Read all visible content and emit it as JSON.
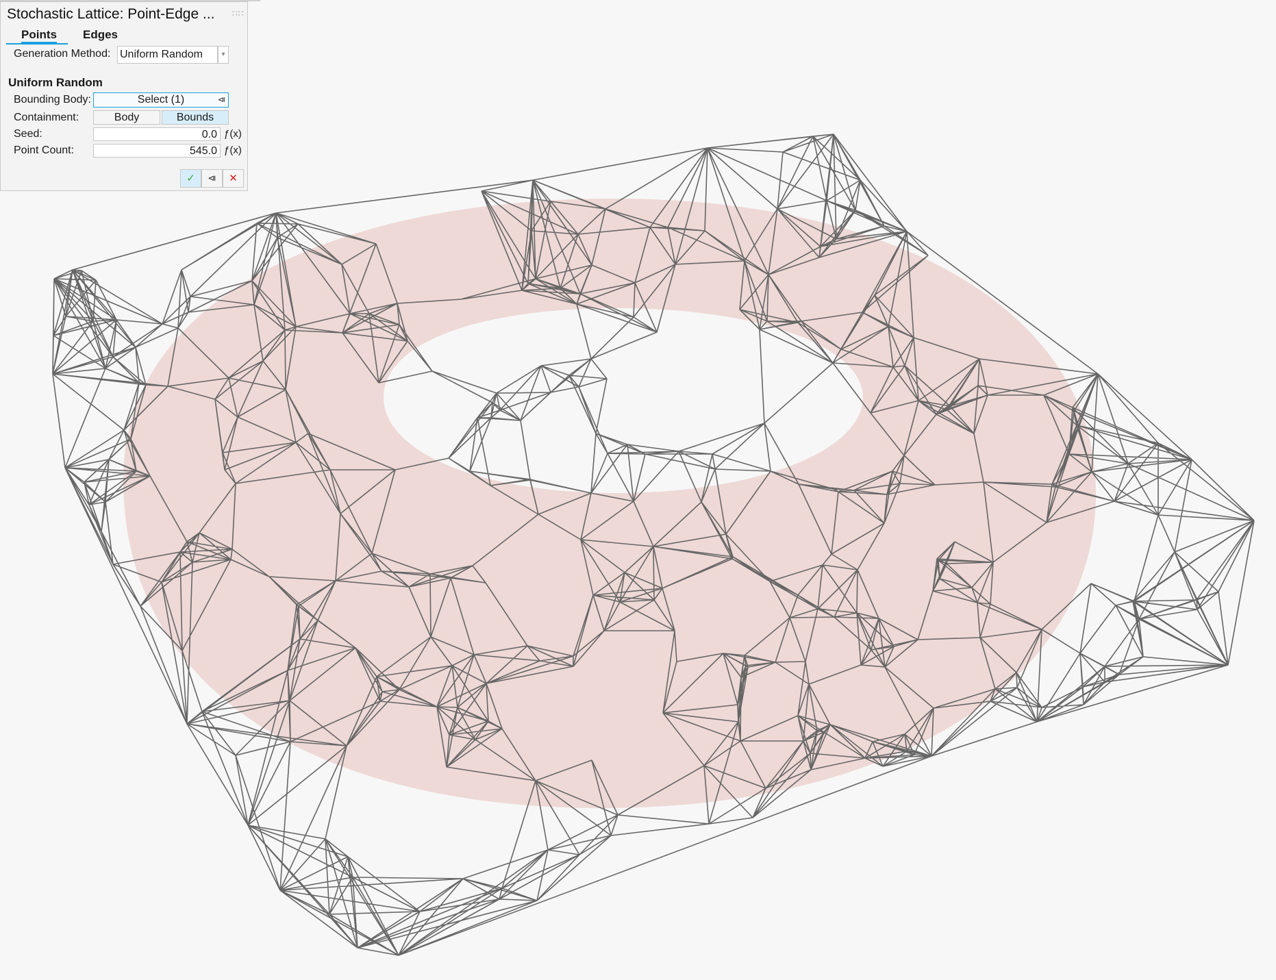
{
  "panel": {
    "title": "Stochastic Lattice: Point-Edge ...",
    "grip_icon": "drag-grip-icon",
    "tabs": [
      {
        "label": "Points",
        "active": true
      },
      {
        "label": "Edges",
        "active": false
      }
    ],
    "generation_method": {
      "label": "Generation Method:",
      "value": "Uniform Random"
    },
    "section_title": "Uniform Random",
    "bounding_body": {
      "label": "Bounding Body:",
      "value": "Select (1)"
    },
    "containment": {
      "label": "Containment:",
      "options": [
        "Body",
        "Bounds"
      ],
      "selected": "Bounds"
    },
    "seed": {
      "label": "Seed:",
      "value": "0.0",
      "fx": "ƒ(x)"
    },
    "point_count": {
      "label": "Point Count:",
      "value": "545.0",
      "fx": "ƒ(x)"
    },
    "actions": {
      "ok": "✓",
      "apply": "⧏",
      "cancel": "✕"
    }
  },
  "colors": {
    "accent": "#1aa0e0",
    "lattice": "#666666",
    "body": "#e6b9b4",
    "background": "#f7f7f7"
  }
}
